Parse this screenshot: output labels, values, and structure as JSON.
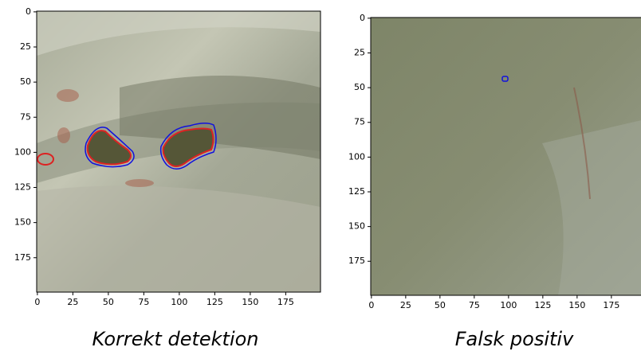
{
  "chart_data": [
    {
      "type": "image",
      "title": "Korrekt detektion",
      "xlim": [
        -0.5,
        199.5
      ],
      "ylim": [
        199.5,
        -0.5
      ],
      "xticks": [
        0,
        25,
        50,
        75,
        100,
        125,
        150,
        175
      ],
      "yticks": [
        0,
        25,
        50,
        75,
        100,
        125,
        150,
        175
      ]
    },
    {
      "type": "image",
      "title": "Falsk positiv",
      "xlim": [
        -0.5,
        199.5
      ],
      "ylim": [
        199.5,
        -0.5
      ],
      "xticks": [
        0,
        25,
        50,
        75,
        100,
        125,
        150,
        175
      ],
      "yticks": [
        0,
        25,
        50,
        75,
        100,
        125,
        150,
        175
      ]
    }
  ]
}
